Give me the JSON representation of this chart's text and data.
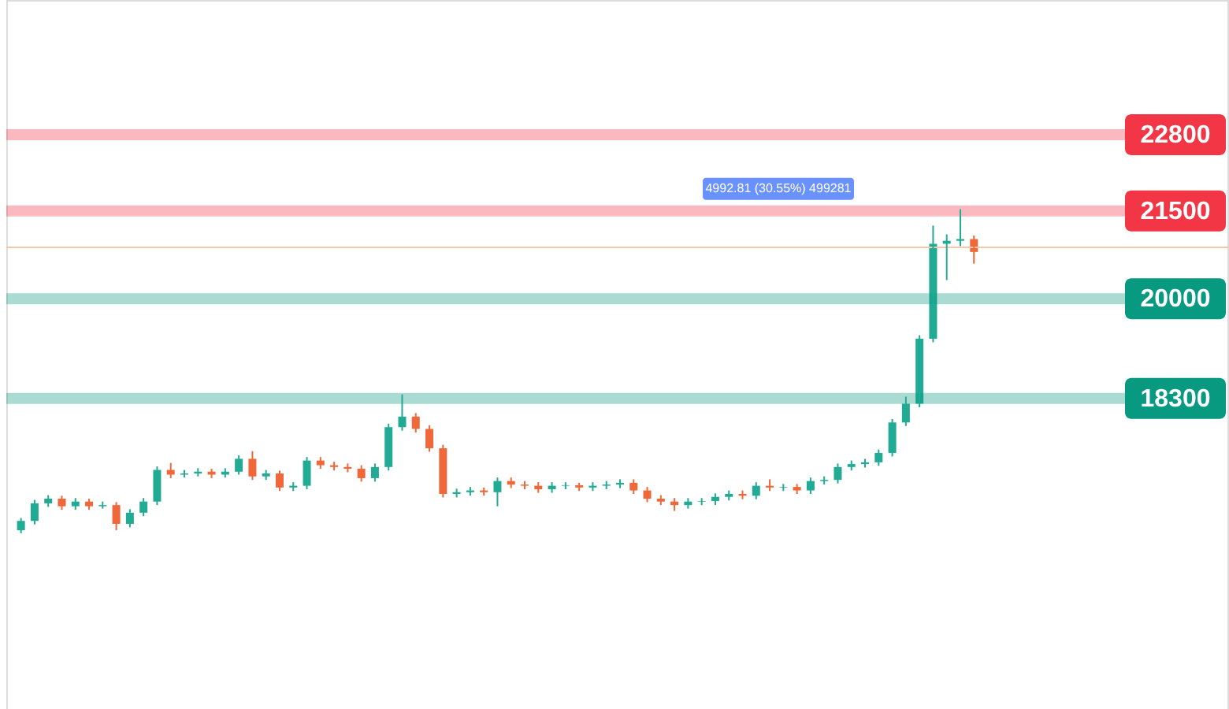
{
  "chart_data": {
    "type": "candlestick",
    "categories": [
      null,
      null,
      null,
      null,
      null,
      null,
      null,
      null,
      null,
      null,
      null,
      null,
      null,
      null,
      null,
      null,
      null,
      null,
      null,
      null,
      null,
      null,
      null,
      null,
      null,
      null,
      null,
      null,
      null,
      null,
      null,
      null,
      null,
      null,
      null,
      null,
      null,
      null,
      null,
      null,
      null,
      null,
      null,
      null,
      null,
      null,
      null,
      null,
      null,
      null,
      null,
      null,
      null,
      null,
      null,
      null,
      null,
      null,
      null,
      null,
      null,
      null,
      null,
      null,
      null,
      null,
      null,
      null,
      null,
      null,
      null
    ],
    "ohlc": [
      [
        16050,
        16260,
        16000,
        16210
      ],
      [
        16210,
        16570,
        16150,
        16510
      ],
      [
        16510,
        16650,
        16450,
        16590
      ],
      [
        16590,
        16640,
        16400,
        16460
      ],
      [
        16460,
        16600,
        16400,
        16540
      ],
      [
        16540,
        16590,
        16400,
        16460
      ],
      [
        16460,
        16540,
        16420,
        16480
      ],
      [
        16480,
        16530,
        16050,
        16160
      ],
      [
        16160,
        16410,
        16100,
        16350
      ],
      [
        16350,
        16600,
        16290,
        16540
      ],
      [
        16540,
        17140,
        16480,
        17080
      ],
      [
        17080,
        17200,
        16940,
        17000
      ],
      [
        17000,
        17080,
        16950,
        17020
      ],
      [
        17020,
        17110,
        16970,
        17050
      ],
      [
        17050,
        17100,
        16940,
        17000
      ],
      [
        17000,
        17110,
        16950,
        17050
      ],
      [
        17050,
        17330,
        17000,
        17270
      ],
      [
        17270,
        17400,
        16910,
        16970
      ],
      [
        16970,
        17080,
        16910,
        17020
      ],
      [
        17020,
        17070,
        16720,
        16780
      ],
      [
        16780,
        16870,
        16720,
        16810
      ],
      [
        16810,
        17300,
        16750,
        17240
      ],
      [
        17240,
        17300,
        17100,
        17160
      ],
      [
        17160,
        17220,
        17070,
        17130
      ],
      [
        17130,
        17190,
        17040,
        17100
      ],
      [
        17100,
        17160,
        16880,
        16940
      ],
      [
        16940,
        17190,
        16880,
        17130
      ],
      [
        17130,
        17870,
        17070,
        17810
      ],
      [
        17810,
        18370,
        17750,
        17990
      ],
      [
        17990,
        18050,
        17720,
        17780
      ],
      [
        17780,
        17840,
        17390,
        17450
      ],
      [
        17450,
        17510,
        16610,
        16670
      ],
      [
        16670,
        16760,
        16610,
        16700
      ],
      [
        16700,
        16790,
        16640,
        16730
      ],
      [
        16730,
        16780,
        16640,
        16700
      ],
      [
        16700,
        16950,
        16460,
        16890
      ],
      [
        16890,
        16950,
        16770,
        16830
      ],
      [
        16830,
        16890,
        16750,
        16810
      ],
      [
        16810,
        16870,
        16690,
        16750
      ],
      [
        16750,
        16870,
        16690,
        16810
      ],
      [
        16810,
        16870,
        16750,
        16820
      ],
      [
        16820,
        16860,
        16720,
        16780
      ],
      [
        16780,
        16870,
        16720,
        16810
      ],
      [
        16810,
        16890,
        16750,
        16830
      ],
      [
        16830,
        16920,
        16770,
        16860
      ],
      [
        16860,
        16920,
        16670,
        16730
      ],
      [
        16730,
        16790,
        16530,
        16590
      ],
      [
        16590,
        16650,
        16480,
        16540
      ],
      [
        16540,
        16600,
        16380,
        16480
      ],
      [
        16480,
        16600,
        16420,
        16540
      ],
      [
        16540,
        16600,
        16480,
        16550
      ],
      [
        16550,
        16680,
        16480,
        16620
      ],
      [
        16620,
        16730,
        16560,
        16670
      ],
      [
        16670,
        16730,
        16580,
        16640
      ],
      [
        16640,
        16870,
        16580,
        16810
      ],
      [
        16810,
        16920,
        16720,
        16780
      ],
      [
        16780,
        16840,
        16720,
        16790
      ],
      [
        16790,
        16840,
        16670,
        16730
      ],
      [
        16730,
        16950,
        16670,
        16890
      ],
      [
        16890,
        16970,
        16830,
        16910
      ],
      [
        16910,
        17190,
        16850,
        17130
      ],
      [
        17130,
        17240,
        17070,
        17180
      ],
      [
        17180,
        17270,
        17120,
        17210
      ],
      [
        17210,
        17430,
        17150,
        17370
      ],
      [
        17370,
        17950,
        17310,
        17890
      ],
      [
        17890,
        18330,
        17830,
        18210
      ],
      [
        18210,
        19380,
        18150,
        19320
      ],
      [
        19320,
        21250,
        19260,
        20940
      ],
      [
        20940,
        21100,
        20320,
        20990
      ],
      [
        20990,
        21530,
        20900,
        21020
      ],
      [
        21020,
        21080,
        20600,
        20800
      ]
    ],
    "colors": [
      "#22ab94",
      "#22ab94",
      "#22ab94",
      "#f0683a",
      "#22ab94",
      "#f0683a",
      "#22ab94",
      "#f0683a",
      "#22ab94",
      "#22ab94",
      "#22ab94",
      "#f0683a",
      "#22ab94",
      "#22ab94",
      "#f0683a",
      "#22ab94",
      "#22ab94",
      "#f0683a",
      "#22ab94",
      "#f0683a",
      "#22ab94",
      "#22ab94",
      "#f0683a",
      "#f0683a",
      "#f0683a",
      "#f0683a",
      "#22ab94",
      "#22ab94",
      "#22ab94",
      "#f0683a",
      "#f0683a",
      "#f0683a",
      "#22ab94",
      "#22ab94",
      "#f0683a",
      "#22ab94",
      "#f0683a",
      "#f0683a",
      "#f0683a",
      "#22ab94",
      "#22ab94",
      "#f0683a",
      "#22ab94",
      "#22ab94",
      "#22ab94",
      "#f0683a",
      "#f0683a",
      "#f0683a",
      "#f0683a",
      "#22ab94",
      "#22ab94",
      "#22ab94",
      "#22ab94",
      "#f0683a",
      "#22ab94",
      "#f0683a",
      "#22ab94",
      "#f0683a",
      "#22ab94",
      "#22ab94",
      "#22ab94",
      "#22ab94",
      "#22ab94",
      "#22ab94",
      "#22ab94",
      "#22ab94",
      "#22ab94",
      "#22ab94",
      "#22ab94",
      "#22ab94",
      "#f0683a"
    ],
    "ylim": [
      13000,
      25100
    ],
    "tick_labels": false,
    "ref_lines": [
      {
        "axis": "y",
        "value": 22800,
        "label": "22800",
        "color": "#f23645"
      },
      {
        "axis": "y",
        "value": 21500,
        "label": "21500",
        "color": "#f23645"
      },
      {
        "axis": "y",
        "value": 20000,
        "label": "20000",
        "color": "#089981"
      },
      {
        "axis": "y",
        "value": 18300,
        "label": "18300",
        "color": "#089981"
      },
      {
        "axis": "y",
        "value": 20880,
        "label": null,
        "color": "#f5c9a6"
      }
    ],
    "annotations": [
      {
        "text": "4992.81 (30.55%) 499281",
        "y": 21500
      }
    ]
  }
}
